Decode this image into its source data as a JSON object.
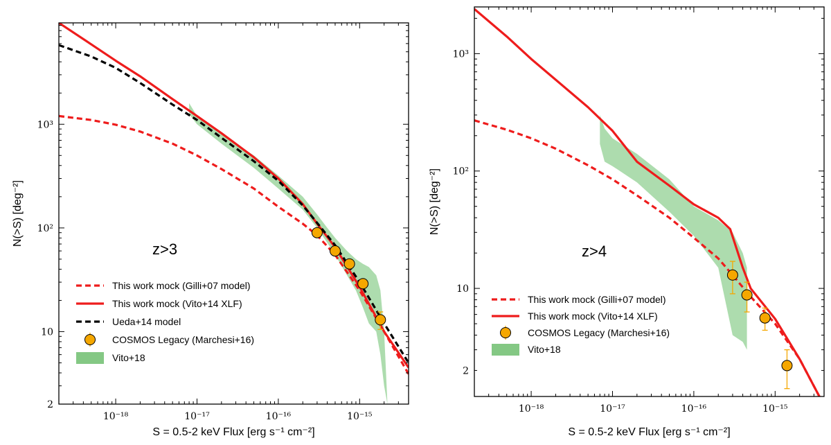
{
  "colors": {
    "red": "#ee1c1c",
    "black": "#000000",
    "orange": "#f5a700",
    "green_band": "#9fd6a0",
    "green_legend": "#84c884"
  },
  "chart_data": [
    {
      "type": "line",
      "xscale": "log",
      "yscale": "log",
      "xlim": [
        2e-19,
        4e-15
      ],
      "ylim": [
        2,
        9500
      ],
      "xticks": [
        {
          "v": 1e-18,
          "label": "10⁻¹⁸"
        },
        {
          "v": 1e-17,
          "label": "10⁻¹⁷"
        },
        {
          "v": 1e-16,
          "label": "10⁻¹⁶"
        },
        {
          "v": 1e-15,
          "label": "10⁻¹⁵"
        }
      ],
      "yticks": [
        {
          "v": 2,
          "label": "2"
        },
        {
          "v": 10,
          "label": "10"
        },
        {
          "v": 100,
          "label": "10²"
        },
        {
          "v": 1000,
          "label": "10³"
        }
      ],
      "xlabel": "S = 0.5-2 keV Flux [erg s⁻¹ cm⁻²]",
      "ylabel": "N(>S) [deg⁻²]",
      "annotation": "z>3",
      "series": [
        {
          "name": "This work mock (Gilli+07 model)",
          "style": "dashed",
          "color": "#ee1c1c",
          "x": [
            2e-19,
            5e-19,
            1e-18,
            2e-18,
            5e-18,
            1e-17,
            2e-17,
            5e-17,
            1e-16,
            2e-16,
            3e-16,
            5e-16,
            1e-15,
            2e-15,
            4e-15
          ],
          "y": [
            1200,
            1100,
            990,
            850,
            650,
            500,
            370,
            240,
            160,
            110,
            85,
            55,
            25,
            10,
            3.9
          ]
        },
        {
          "name": "This work mock (Vito+14 XLF)",
          "style": "solid",
          "color": "#ee1c1c",
          "x": [
            2e-19,
            5e-19,
            1e-18,
            2e-18,
            5e-18,
            1e-17,
            2e-17,
            5e-17,
            1e-16,
            2e-16,
            3e-16,
            5e-16,
            1e-15,
            2e-15,
            4e-15
          ],
          "y": [
            9500,
            5900,
            4100,
            2900,
            1750,
            1200,
            820,
            480,
            300,
            170,
            110,
            65,
            27,
            10,
            4.5
          ]
        },
        {
          "name": "Ueda+14 model",
          "style": "dashed",
          "color": "#000000",
          "x": [
            2e-19,
            5e-19,
            1e-18,
            2e-18,
            5e-18,
            1e-17,
            2e-17,
            5e-17,
            1e-16,
            2e-16,
            3e-16,
            5e-16,
            1e-15,
            2e-15,
            4e-15
          ],
          "y": [
            5800,
            4500,
            3500,
            2500,
            1550,
            1100,
            740,
            440,
            285,
            165,
            112,
            68,
            30,
            12,
            5.0
          ]
        }
      ],
      "points": {
        "name": "COSMOS Legacy (Marchesi+16)",
        "x": [
          3e-16,
          5e-16,
          7.5e-16,
          1.1e-15,
          1.8e-15
        ],
        "y": [
          90,
          60,
          45,
          29,
          13
        ],
        "yerr_low": [
          5,
          4,
          3,
          2.5,
          2.5
        ],
        "yerr_high": [
          5,
          4,
          3,
          2.5,
          2.5
        ]
      },
      "band": {
        "name": "Vito+18",
        "x": [
          8e-18,
          1e-17,
          2e-17,
          5e-17,
          1e-16,
          2e-16,
          3e-16,
          4e-16,
          5e-16,
          7e-16,
          9e-16,
          1.1e-15,
          1.3e-15,
          1.6e-15,
          1.8e-15,
          2e-15,
          2.2e-15
        ],
        "y_low": [
          1250,
          1000,
          650,
          380,
          240,
          150,
          100,
          72,
          55,
          35,
          25,
          17,
          12,
          10,
          6,
          3,
          2
        ],
        "y_high": [
          1600,
          1200,
          800,
          500,
          320,
          200,
          135,
          100,
          80,
          60,
          50,
          45,
          42,
          35,
          25,
          10,
          2
        ]
      },
      "legend": {
        "position": "lower-left",
        "entries": [
          "This work mock (Gilli+07 model)",
          "This work mock (Vito+14 XLF)",
          "Ueda+14 model",
          "COSMOS Legacy (Marchesi+16)",
          "Vito+18"
        ]
      }
    },
    {
      "type": "line",
      "xscale": "log",
      "yscale": "log",
      "xlim": [
        2e-19,
        4e-15
      ],
      "ylim": [
        1.2,
        2500
      ],
      "xticks": [
        {
          "v": 1e-18,
          "label": "10⁻¹⁸"
        },
        {
          "v": 1e-17,
          "label": "10⁻¹⁷"
        },
        {
          "v": 1e-16,
          "label": "10⁻¹⁶"
        },
        {
          "v": 1e-15,
          "label": "10⁻¹⁵"
        }
      ],
      "yticks": [
        {
          "v": 2,
          "label": "2"
        },
        {
          "v": 10,
          "label": "10"
        },
        {
          "v": 100,
          "label": "10²"
        },
        {
          "v": 1000,
          "label": "10³"
        }
      ],
      "xlabel": "S = 0.5-2 keV Flux [erg s⁻¹ cm⁻²]",
      "ylabel": "N(>S) [deg⁻²]",
      "annotation": "z>4",
      "series": [
        {
          "name": "This work mock (Gilli+07 model)",
          "style": "dashed",
          "color": "#ee1c1c",
          "x": [
            2e-19,
            5e-19,
            1e-18,
            2e-18,
            5e-18,
            1e-17,
            2e-17,
            5e-17,
            1e-16,
            2e-16,
            3e-16,
            5e-16,
            1e-15,
            2e-15,
            3.5e-15
          ],
          "y": [
            270,
            225,
            190,
            155,
            112,
            85,
            62,
            40,
            27,
            18,
            13,
            8.5,
            5,
            2.5,
            1.2
          ]
        },
        {
          "name": "This work mock (Vito+14 XLF)",
          "style": "solid",
          "color": "#ee1c1c",
          "x": [
            2e-19,
            5e-19,
            1e-18,
            2e-18,
            5e-18,
            1e-17,
            2e-17,
            5e-17,
            1e-16,
            2e-16,
            2.8e-16,
            4e-16,
            5e-16,
            1e-15,
            2e-15,
            3.5e-15
          ],
          "y": [
            2400,
            1400,
            900,
            600,
            350,
            220,
            120,
            75,
            52,
            40,
            32,
            15,
            10,
            5.5,
            2.5,
            1.2
          ]
        }
      ],
      "points": {
        "name": "COSMOS Legacy (Marchesi+16)",
        "x": [
          3e-16,
          4.5e-16,
          7.5e-16,
          1.4e-15
        ],
        "y": [
          13,
          8.8,
          5.6,
          2.2
        ],
        "yerr_low": [
          4,
          2.5,
          1.2,
          0.8
        ],
        "yerr_high": [
          4,
          2.5,
          1.2,
          0.8
        ]
      },
      "band": {
        "name": "Vito+18",
        "x": [
          7e-18,
          8e-18,
          1e-17,
          2e-17,
          5e-17,
          1e-16,
          2e-16,
          3e-16,
          4e-16,
          4.5e-16
        ],
        "y_low": [
          170,
          120,
          110,
          80,
          45,
          28,
          15,
          4,
          3.5,
          3
        ],
        "y_high": [
          300,
          230,
          190,
          140,
          85,
          50,
          38,
          30,
          20,
          15
        ]
      },
      "legend": {
        "position": "lower-left",
        "entries": [
          "This work mock (Gilli+07 model)",
          "This work mock (Vito+14 XLF)",
          "COSMOS Legacy (Marchesi+16)",
          "Vito+18"
        ]
      }
    }
  ]
}
